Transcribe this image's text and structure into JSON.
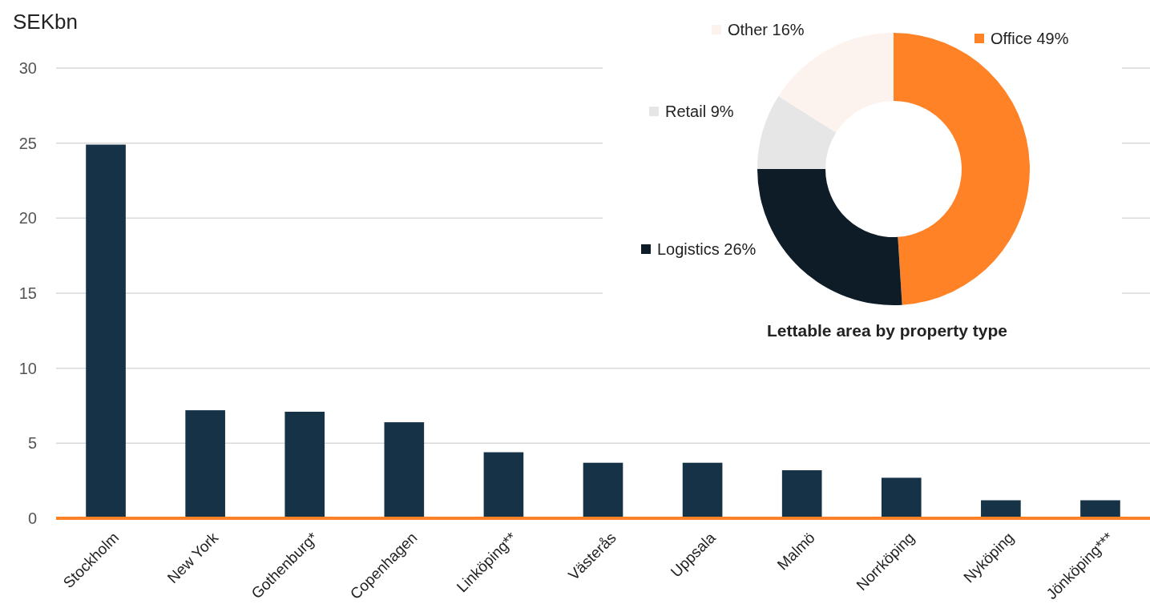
{
  "chart_data": [
    {
      "type": "bar",
      "ylabel": "SEKbn",
      "categories": [
        "Stockholm",
        "New York",
        "Gothenburg*",
        "Copenhagen",
        "Linköping**",
        "Västerås",
        "Uppsala",
        "Malmö",
        "Norrköping",
        "Nyköping",
        "Jönköping***"
      ],
      "values": [
        24.9,
        7.2,
        7.1,
        6.4,
        4.4,
        3.7,
        3.7,
        3.2,
        2.7,
        1.2,
        1.2
      ],
      "color": "#163247",
      "ylim": [
        0,
        30
      ],
      "yticks": [
        0,
        5,
        10,
        15,
        20,
        25,
        30
      ],
      "grid": "y"
    },
    {
      "type": "donut",
      "title": "Lettable area by property type",
      "categories": [
        "Office 49%",
        "Logistics 26%",
        "Retail 9%",
        "Other 16%"
      ],
      "values": [
        49,
        26,
        9,
        16
      ],
      "colors": [
        "#ff8227",
        "#0e1c27",
        "#e6e6e6",
        "#fdf3ee"
      ],
      "legend": "left"
    }
  ]
}
